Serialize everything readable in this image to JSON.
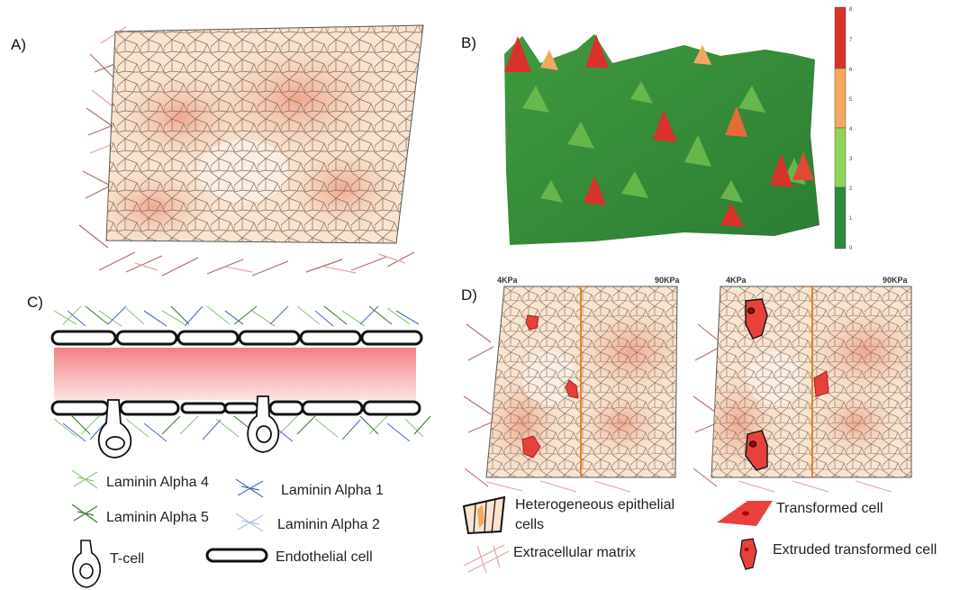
{
  "panels": {
    "a": "A)",
    "b": "B)",
    "c": "C)",
    "d": "D)"
  },
  "colorbar": {
    "ticks": [
      "0",
      "1",
      "2",
      "3",
      "4",
      "5",
      "6",
      "7",
      "8"
    ],
    "bands": [
      "#2e8b3e",
      "#8fd35a",
      "#f3a860",
      "#d9322b"
    ]
  },
  "panel_d": {
    "left_low": "4KPa",
    "left_high": "90KPa",
    "right_low": "4KPa",
    "right_high": "90KPa"
  },
  "legend_c": {
    "laminin_a4": "Laminin Alpha 4",
    "laminin_a5": "Laminin Alpha 5",
    "laminin_a1": "Laminin Alpha 1",
    "laminin_a2": "Laminin Alpha 2",
    "tcell": "T-cell",
    "endothelial": "Endothelial cell"
  },
  "legend_d": {
    "epithelial_line1": "Heterogeneous epithelial",
    "epithelial_line2": "cells",
    "ecm": "Extracellular matrix",
    "transformed": "Transformed cell",
    "extruded": "Extruded transformed cell"
  },
  "colors": {
    "laminin_a4": "#8cc878",
    "laminin_a5": "#3d7a34",
    "laminin_a1": "#4a6fc0",
    "laminin_a2": "#a9c2e6",
    "vessel_fill": "#f08a8f",
    "transformed": "#e8413c",
    "stiffness_line": "#e8832a"
  }
}
